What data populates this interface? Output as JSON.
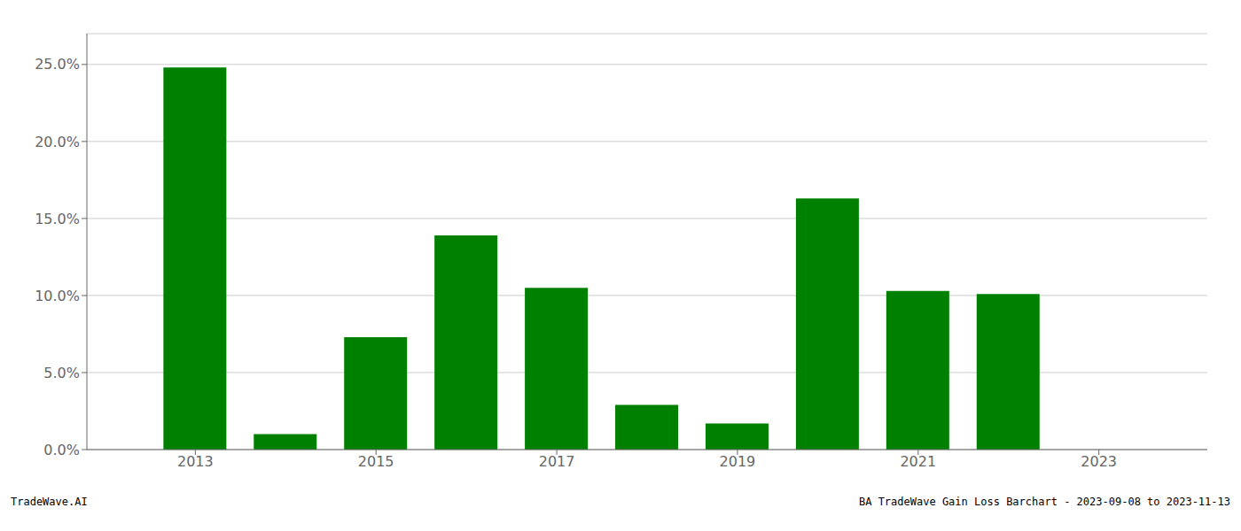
{
  "chart_data": {
    "type": "bar",
    "x": [
      2013,
      2014,
      2015,
      2016,
      2017,
      2018,
      2019,
      2020,
      2021,
      2022,
      2023
    ],
    "values": [
      0.248,
      0.01,
      0.073,
      0.139,
      0.105,
      0.029,
      0.017,
      0.163,
      0.103,
      0.101,
      0.0
    ],
    "color": "#008000",
    "xlim": [
      2011.8,
      2024.2
    ],
    "xticks": [
      2013,
      2015,
      2017,
      2019,
      2021,
      2023
    ],
    "ylim": [
      0,
      0.27
    ],
    "yticks": [
      {
        "value": 0.0,
        "label": "0.0%"
      },
      {
        "value": 0.05,
        "label": "5.0%"
      },
      {
        "value": 0.1,
        "label": "10.0%"
      },
      {
        "value": 0.15,
        "label": "15.0%"
      },
      {
        "value": 0.2,
        "label": "20.0%"
      },
      {
        "value": 0.25,
        "label": "25.0%"
      }
    ],
    "grid": true,
    "annotations": [
      "TradeWave.AI",
      "BA TradeWave Gain Loss Barchart - 2023-09-08 to 2023-11-13"
    ]
  }
}
